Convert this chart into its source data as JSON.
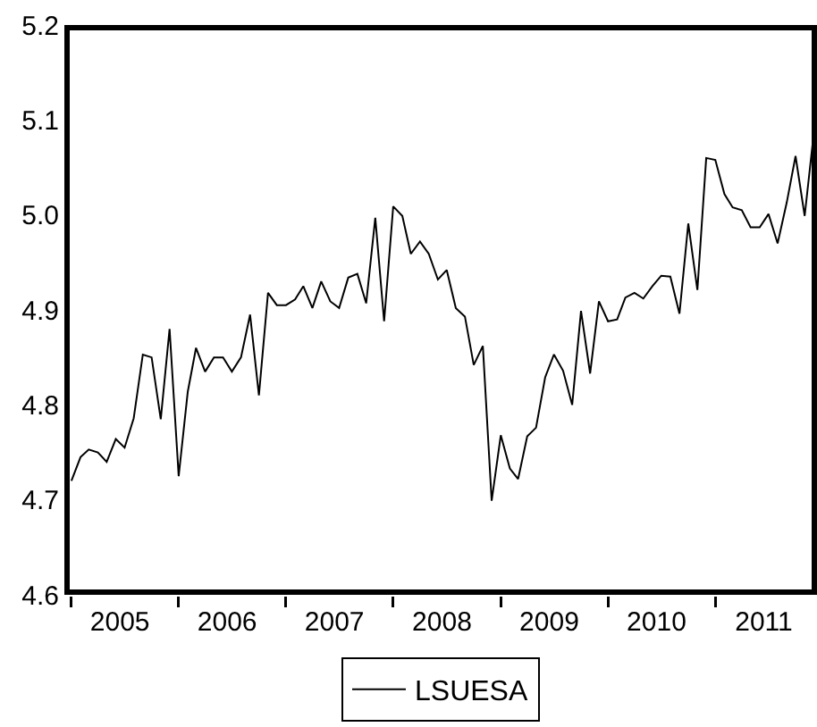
{
  "chart_data": {
    "type": "line",
    "x": [
      "2005-01",
      "2005-02",
      "2005-03",
      "2005-04",
      "2005-05",
      "2005-06",
      "2005-07",
      "2005-08",
      "2005-09",
      "2005-10",
      "2005-11",
      "2005-12",
      "2006-01",
      "2006-02",
      "2006-03",
      "2006-04",
      "2006-05",
      "2006-06",
      "2006-07",
      "2006-08",
      "2006-09",
      "2006-10",
      "2006-11",
      "2006-12",
      "2007-01",
      "2007-02",
      "2007-03",
      "2007-04",
      "2007-05",
      "2007-06",
      "2007-07",
      "2007-08",
      "2007-09",
      "2007-10",
      "2007-11",
      "2007-12",
      "2008-01",
      "2008-02",
      "2008-03",
      "2008-04",
      "2008-05",
      "2008-06",
      "2008-07",
      "2008-08",
      "2008-09",
      "2008-10",
      "2008-11",
      "2008-12",
      "2009-01",
      "2009-02",
      "2009-03",
      "2009-04",
      "2009-05",
      "2009-06",
      "2009-07",
      "2009-08",
      "2009-09",
      "2009-10",
      "2009-11",
      "2009-12",
      "2010-01",
      "2010-02",
      "2010-03",
      "2010-04",
      "2010-05",
      "2010-06",
      "2010-07",
      "2010-08",
      "2010-09",
      "2010-10",
      "2010-11",
      "2010-12",
      "2011-01",
      "2011-02",
      "2011-03",
      "2011-04",
      "2011-05",
      "2011-06",
      "2011-07",
      "2011-08",
      "2011-09",
      "2011-10",
      "2011-11",
      "2011-12"
    ],
    "series": [
      {
        "name": "LSUESA",
        "color": "#000000",
        "values": [
          4.72,
          4.745,
          4.753,
          4.75,
          4.74,
          4.764,
          4.755,
          4.786,
          4.853,
          4.85,
          4.785,
          4.88,
          4.725,
          4.814,
          4.86,
          4.835,
          4.85,
          4.85,
          4.835,
          4.85,
          4.895,
          4.81,
          4.918,
          4.905,
          4.905,
          4.911,
          4.925,
          4.902,
          4.93,
          4.909,
          4.902,
          4.934,
          4.938,
          4.907,
          4.997,
          4.888,
          5.009,
          4.999,
          4.959,
          4.972,
          4.959,
          4.932,
          4.942,
          4.902,
          4.893,
          4.842,
          4.862,
          4.699,
          4.768,
          4.733,
          4.722,
          4.767,
          4.776,
          4.829,
          4.853,
          4.836,
          4.8,
          4.899,
          4.833,
          4.909,
          4.888,
          4.89,
          4.913,
          4.918,
          4.912,
          4.925,
          4.936,
          4.935,
          4.896,
          4.991,
          4.921,
          5.06,
          5.058,
          5.022,
          5.008,
          5.005,
          4.987,
          4.987,
          5.001,
          4.97,
          5.013,
          5.062,
          4.999,
          5.083
        ]
      }
    ],
    "xlim": [
      "2004-12-08",
      "2011-12-13"
    ],
    "xticks": [
      {
        "value": "2005-01",
        "label": null
      },
      {
        "value": "2005-06-15",
        "label": "2005"
      },
      {
        "value": "2006-01",
        "label": null
      },
      {
        "value": "2006-06-15",
        "label": "2006"
      },
      {
        "value": "2007-01",
        "label": null
      },
      {
        "value": "2007-06-15",
        "label": "2007"
      },
      {
        "value": "2008-01",
        "label": null
      },
      {
        "value": "2008-06-15",
        "label": "2008"
      },
      {
        "value": "2009-01",
        "label": null
      },
      {
        "value": "2009-06-15",
        "label": "2009"
      },
      {
        "value": "2010-01",
        "label": null
      },
      {
        "value": "2010-06-15",
        "label": "2010"
      },
      {
        "value": "2011-01",
        "label": null
      },
      {
        "value": "2011-06-15",
        "label": "2011"
      }
    ],
    "ylim": [
      4.6,
      5.2
    ],
    "yticks": [
      4.6,
      4.7,
      4.8,
      4.9,
      {
        "value": 5.0,
        "label": "5.0"
      },
      5.1,
      5.2
    ],
    "grid": false,
    "legend": "bottom",
    "marker": "none",
    "line_style": "solid"
  }
}
